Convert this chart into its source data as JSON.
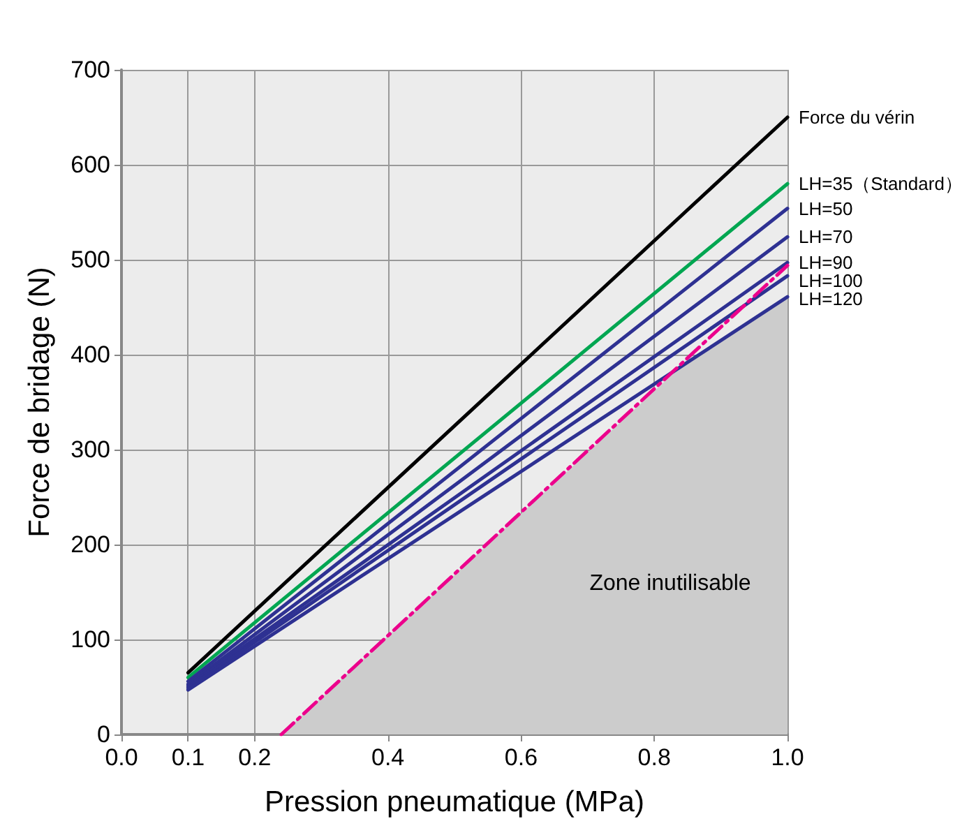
{
  "chart_data": {
    "type": "line",
    "xlabel": "Pression pneumatique (MPa)",
    "ylabel": "Force de bridage (N)",
    "xlim": [
      0,
      1
    ],
    "xticks": [
      {
        "value": 0,
        "label": "0.0"
      },
      0.1,
      0.2,
      0.4,
      0.6,
      0.8,
      {
        "value": 1,
        "label": "1.0"
      }
    ],
    "ylim": [
      0,
      700
    ],
    "yticks": [
      0,
      100,
      200,
      300,
      400,
      500,
      600,
      700
    ],
    "grid": true,
    "legend": false,
    "marker": "none",
    "series": [
      {
        "type": "area",
        "color": "#cccccc",
        "x": [
          0.24,
          0.83,
          1.0
        ],
        "values": [
          0,
          381,
          461
        ]
      },
      {
        "name": "Force du vérin",
        "color": "#000000",
        "x": [
          0.1,
          1.0
        ],
        "values": [
          65,
          650
        ]
      },
      {
        "name": "LH=35（Standard）",
        "color": "#00a651",
        "x": [
          0.1,
          1.0
        ],
        "values": [
          60,
          580
        ]
      },
      {
        "name": "LH=50",
        "color": "#2e3192",
        "x": [
          0.1,
          1.0
        ],
        "values": [
          56,
          554
        ]
      },
      {
        "name": "LH=70",
        "color": "#2e3192",
        "x": [
          0.1,
          1.0
        ],
        "values": [
          53,
          524
        ]
      },
      {
        "name": "LH=90",
        "color": "#2e3192",
        "x": [
          0.1,
          1.0
        ],
        "values": [
          51,
          497
        ]
      },
      {
        "name": "LH=100",
        "color": "#2e3192",
        "x": [
          0.1,
          1.0
        ],
        "values": [
          49,
          483
        ]
      },
      {
        "name": "LH=120",
        "color": "#2e3192",
        "x": [
          0.1,
          1.0
        ],
        "values": [
          47,
          461
        ]
      },
      {
        "color": "#ec008c",
        "line_style": "dashed",
        "x": [
          0.24,
          1.0
        ],
        "values": [
          0,
          494
        ]
      }
    ],
    "annotations": [
      "Zone inutilisable"
    ]
  }
}
